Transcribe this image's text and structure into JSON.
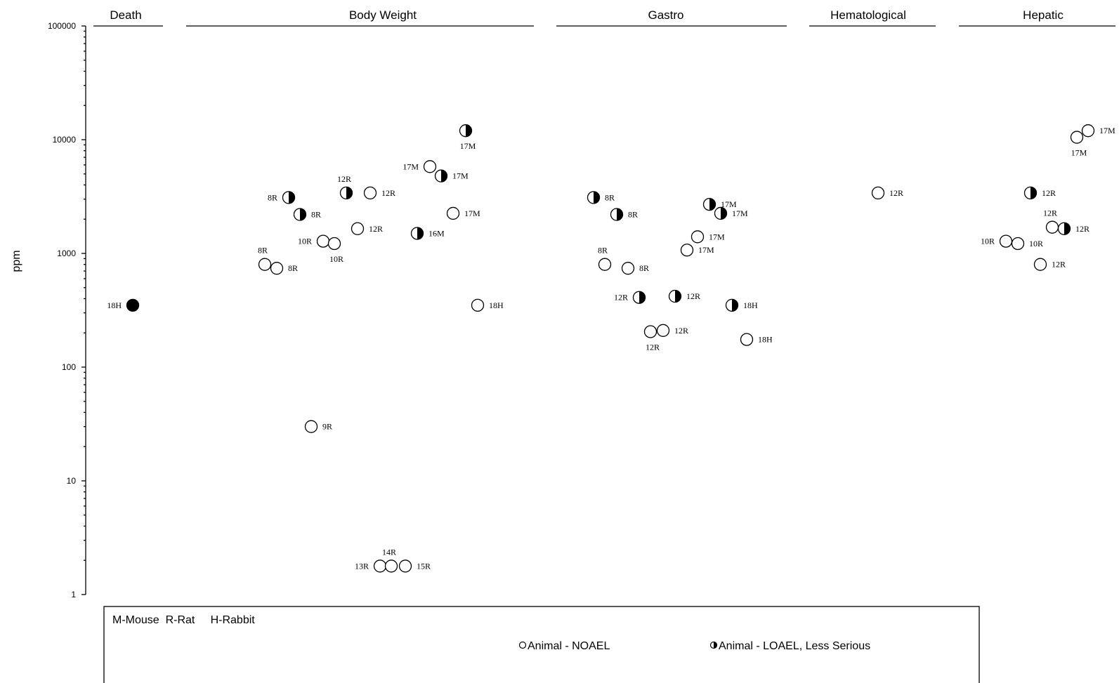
{
  "chart_data": {
    "type": "scatter",
    "ylabel": "ppm",
    "yscale": "log",
    "ylim": [
      1,
      100000
    ],
    "ytick_labels": [
      "100000",
      "10000",
      "1000",
      "100",
      "10",
      "1"
    ],
    "categories": [
      "Death",
      "Body Weight",
      "Gastro",
      "Hematological",
      "Hepatic"
    ],
    "species_key": "M-Mouse  R-Rat     H-Rabbit",
    "legend": [
      {
        "symbol": "open",
        "label": "Animal - NOAEL"
      },
      {
        "symbol": "half",
        "label": "Animal - LOAEL, Less Serious"
      }
    ],
    "colors": {
      "marker": "#000000",
      "background": "#ffffff"
    },
    "points": [
      {
        "category": "Death",
        "y": 350,
        "type": "filled",
        "label": "18H",
        "side": "left"
      },
      {
        "category": "Body Weight",
        "y": 3100,
        "type": "half",
        "label": "8R",
        "side": "left"
      },
      {
        "category": "Body Weight",
        "y": 2200,
        "type": "half",
        "label": "8R",
        "side": "right"
      },
      {
        "category": "Body Weight",
        "y": 800,
        "type": "open",
        "label": "8R",
        "side": "above"
      },
      {
        "category": "Body Weight",
        "y": 740,
        "type": "open",
        "label": "8R",
        "side": "right"
      },
      {
        "category": "Body Weight",
        "y": 30,
        "type": "open",
        "label": "9R",
        "side": "right"
      },
      {
        "category": "Body Weight",
        "y": 1280,
        "type": "open",
        "label": "10R",
        "side": "left"
      },
      {
        "category": "Body Weight",
        "y": 1220,
        "type": "open",
        "label": "10R",
        "side": "below"
      },
      {
        "category": "Body Weight",
        "y": 3400,
        "type": "half",
        "label": "12R",
        "side": "above"
      },
      {
        "category": "Body Weight",
        "y": 3400,
        "type": "open",
        "label": "12R",
        "side": "right"
      },
      {
        "category": "Body Weight",
        "y": 1650,
        "type": "open",
        "label": "12R",
        "side": "right"
      },
      {
        "category": "Body Weight",
        "y": 1.78,
        "type": "open",
        "label": "13R",
        "side": "left"
      },
      {
        "category": "Body Weight",
        "y": 1.78,
        "type": "open",
        "label": "14R",
        "side": "above"
      },
      {
        "category": "Body Weight",
        "y": 1.78,
        "type": "open",
        "label": "15R",
        "side": "right"
      },
      {
        "category": "Body Weight",
        "y": 1500,
        "type": "half",
        "label": "16M",
        "side": "right"
      },
      {
        "category": "Body Weight",
        "y": 5800,
        "type": "open",
        "label": "17M",
        "side": "left"
      },
      {
        "category": "Body Weight",
        "y": 4800,
        "type": "half",
        "label": "17M",
        "side": "right"
      },
      {
        "category": "Body Weight",
        "y": 2250,
        "type": "open",
        "label": "17M",
        "side": "right"
      },
      {
        "category": "Body Weight",
        "y": 12000,
        "type": "half",
        "label": "17M",
        "side": "below"
      },
      {
        "category": "Body Weight",
        "y": 350,
        "type": "open",
        "label": "18H",
        "side": "right"
      },
      {
        "category": "Gastro",
        "y": 3100,
        "type": "half",
        "label": "8R",
        "side": "right"
      },
      {
        "category": "Gastro",
        "y": 2200,
        "type": "half",
        "label": "8R",
        "side": "right"
      },
      {
        "category": "Gastro",
        "y": 800,
        "type": "open",
        "label": "8R",
        "side": "above"
      },
      {
        "category": "Gastro",
        "y": 740,
        "type": "open",
        "label": "8R",
        "side": "right"
      },
      {
        "category": "Gastro",
        "y": 410,
        "type": "half",
        "label": "12R",
        "side": "left"
      },
      {
        "category": "Gastro",
        "y": 420,
        "type": "half",
        "label": "12R",
        "side": "right"
      },
      {
        "category": "Gastro",
        "y": 205,
        "type": "open",
        "label": "12R",
        "side": "below"
      },
      {
        "category": "Gastro",
        "y": 210,
        "type": "open",
        "label": "12R",
        "side": "right"
      },
      {
        "category": "Gastro",
        "y": 2700,
        "type": "half",
        "label": "17M",
        "side": "right"
      },
      {
        "category": "Gastro",
        "y": 2250,
        "type": "half",
        "label": "17M",
        "side": "right"
      },
      {
        "category": "Gastro",
        "y": 1400,
        "type": "open",
        "label": "17M",
        "side": "right"
      },
      {
        "category": "Gastro",
        "y": 1070,
        "type": "open",
        "label": "17M",
        "side": "right"
      },
      {
        "category": "Gastro",
        "y": 350,
        "type": "half",
        "label": "18H",
        "side": "right"
      },
      {
        "category": "Gastro",
        "y": 175,
        "type": "open",
        "label": "18H",
        "side": "right"
      },
      {
        "category": "Hematological",
        "y": 3400,
        "type": "open",
        "label": "12R",
        "side": "right"
      },
      {
        "category": "Hepatic",
        "y": 1280,
        "type": "open",
        "label": "10R",
        "side": "left"
      },
      {
        "category": "Hepatic",
        "y": 1220,
        "type": "open",
        "label": "10R",
        "side": "right"
      },
      {
        "category": "Hepatic",
        "y": 3400,
        "type": "half",
        "label": "12R",
        "side": "right"
      },
      {
        "category": "Hepatic",
        "y": 1700,
        "type": "open",
        "label": "12R",
        "side": "above"
      },
      {
        "category": "Hepatic",
        "y": 1650,
        "type": "half",
        "label": "12R",
        "side": "right"
      },
      {
        "category": "Hepatic",
        "y": 800,
        "type": "open",
        "label": "12R",
        "side": "right"
      },
      {
        "category": "Hepatic",
        "y": 10500,
        "type": "open",
        "label": "17M",
        "side": "below"
      },
      {
        "category": "Hepatic",
        "y": 12000,
        "type": "open",
        "label": "17M",
        "side": "right"
      }
    ]
  }
}
